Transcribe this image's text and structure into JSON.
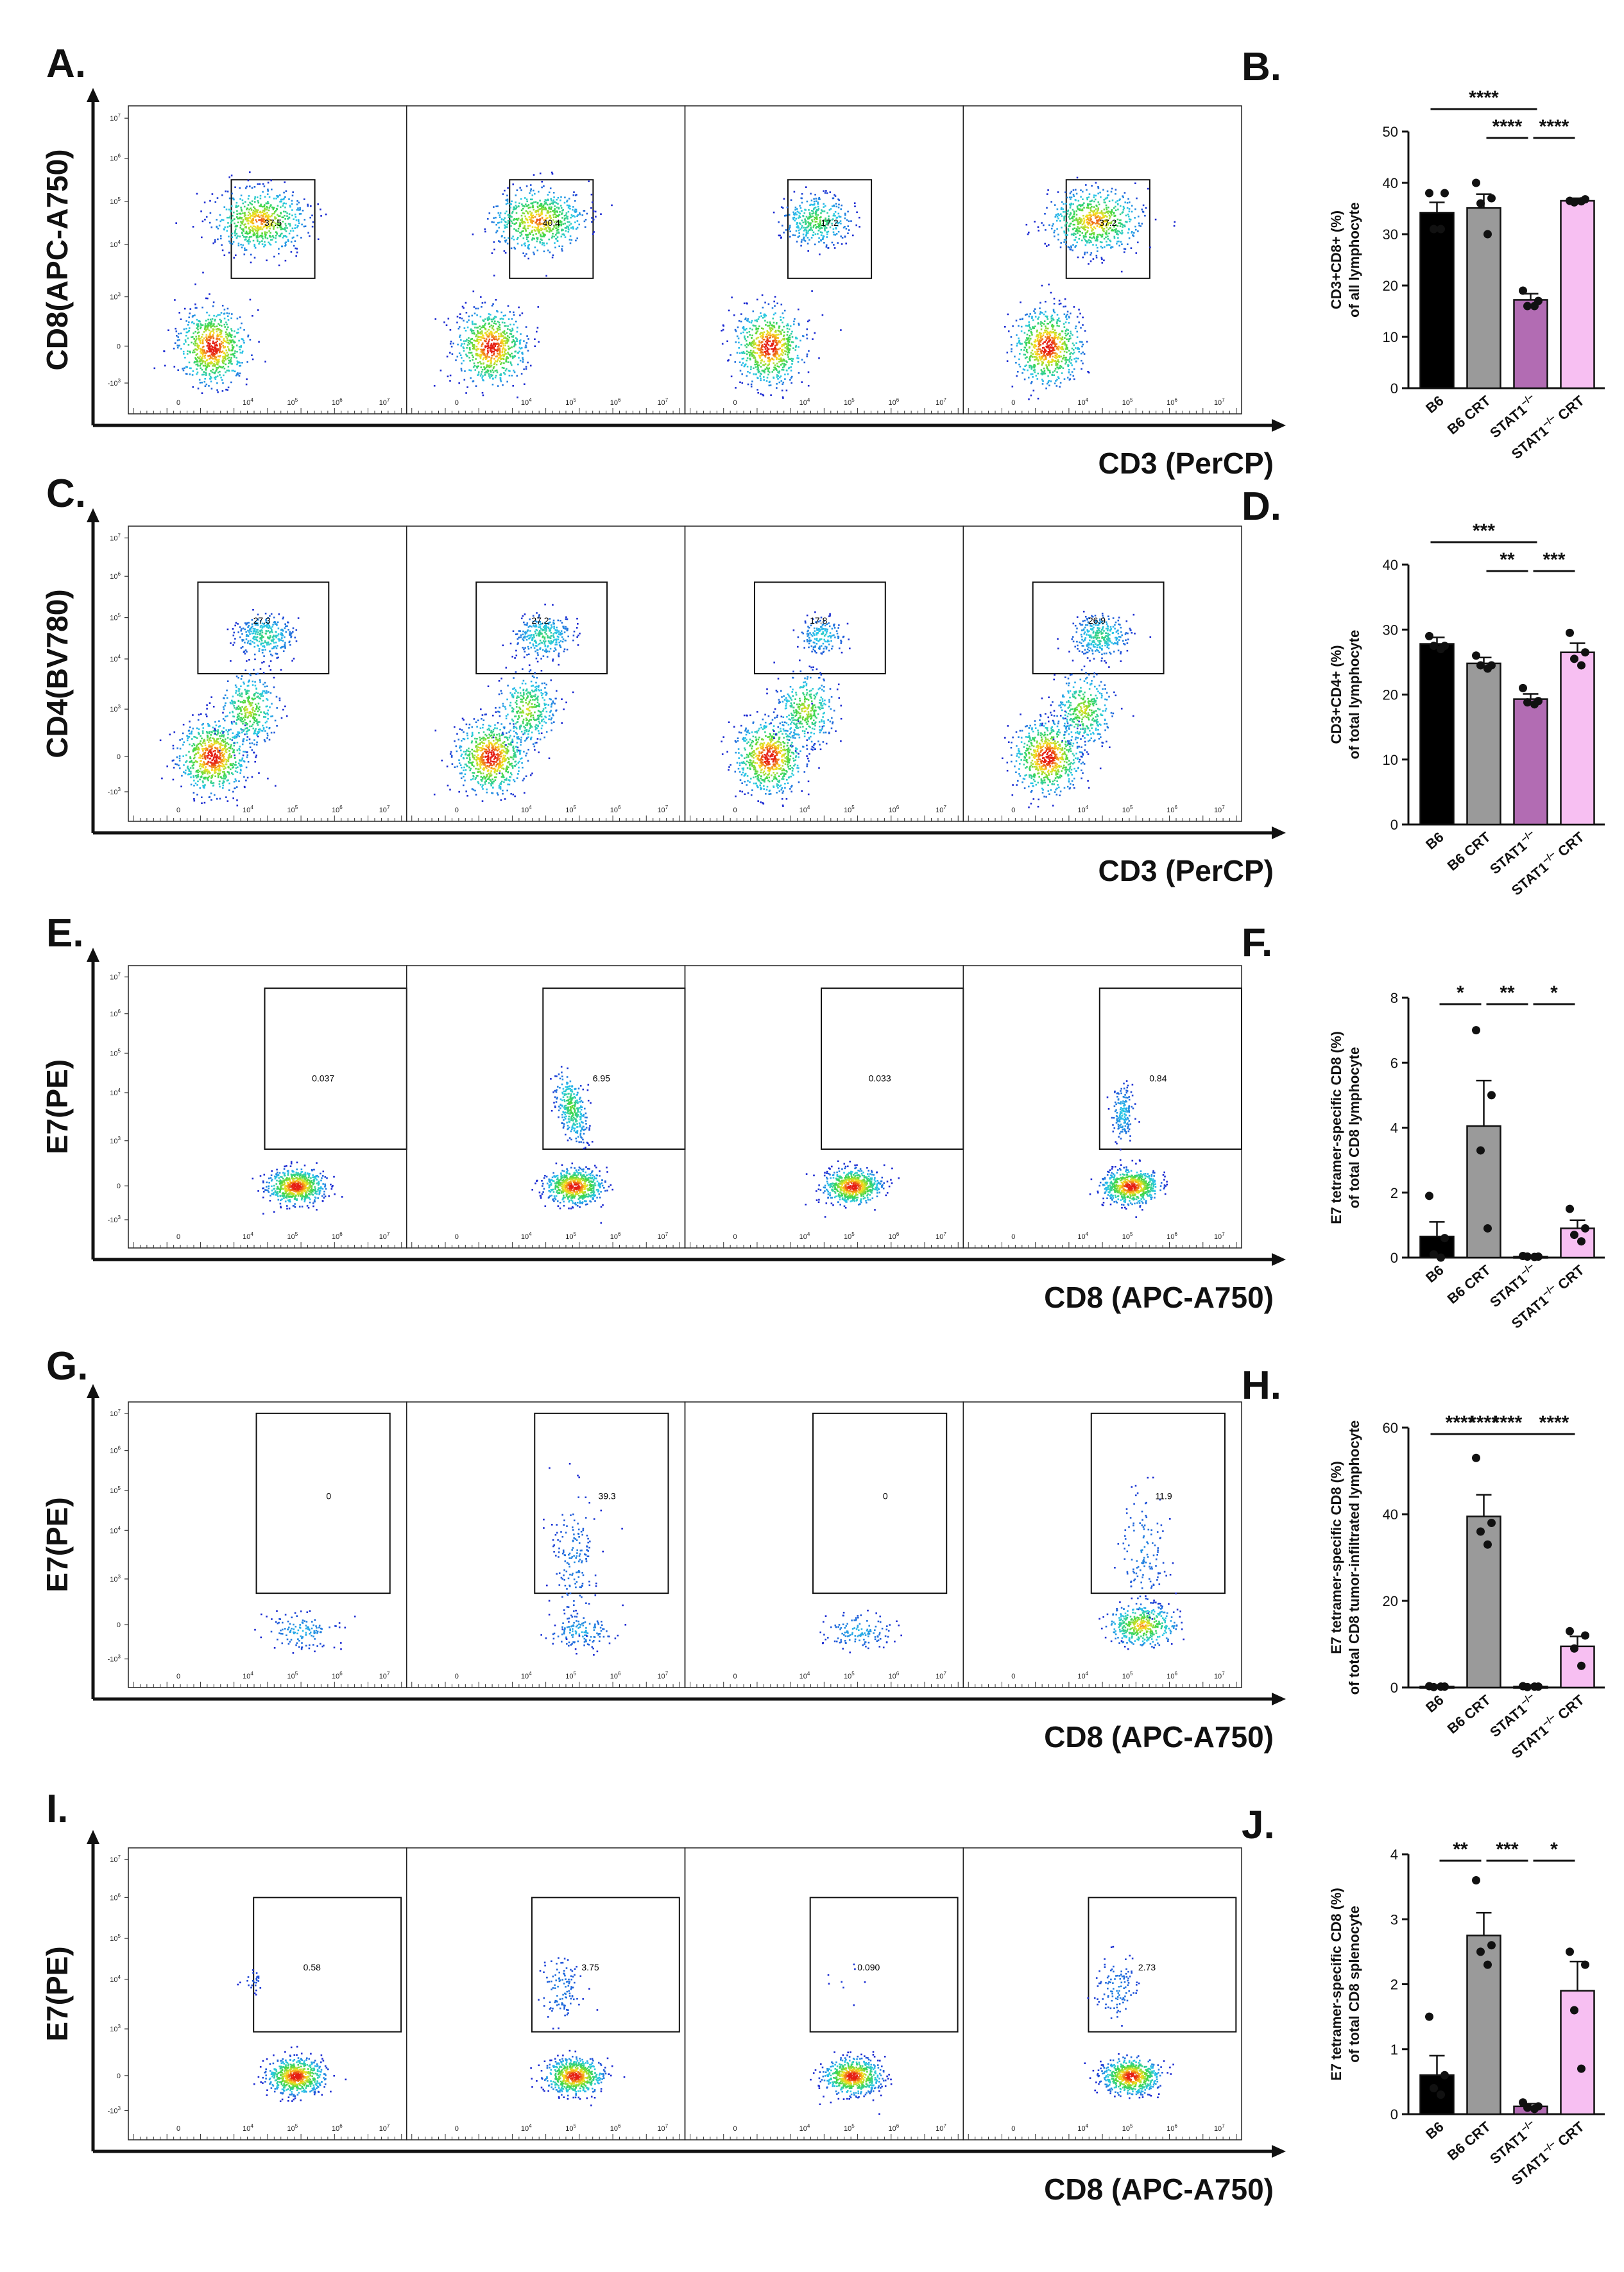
{
  "figure": {
    "flow_groups": [
      "B6",
      "B6 CRT",
      "STAT1−/−",
      "STAT1−/− CRT"
    ],
    "flow_tick_labels": {
      "y": [
        "10^7",
        "10^6",
        "10^5",
        "10^4",
        "10^3",
        "0",
        "-10^3"
      ],
      "x": [
        "0",
        "10^4",
        "10^5",
        "10^6",
        "10^7"
      ]
    }
  },
  "chart_data": [
    {
      "panel": "A.",
      "type": "scatter",
      "ylabel": "CD8(APC-A750)",
      "xlabel": "CD3 (PerCP)",
      "gate_values": [
        "37.5",
        "40.4",
        "17.2",
        "37.2"
      ],
      "populations": [
        [
          "dn",
          "cd8"
        ],
        [
          "dn",
          "cd8"
        ],
        [
          "dn",
          "cd8s"
        ],
        [
          "dn",
          "cd8"
        ]
      ]
    },
    {
      "panel": "B.",
      "type": "bar",
      "ylabel_lines": [
        "CD3+CD8+ (%)",
        "of all lymphocyte"
      ],
      "ylim": [
        0,
        50
      ],
      "yticks": [
        0,
        10,
        20,
        30,
        40,
        50
      ],
      "categories": [
        "B6",
        "B6 CRT",
        "STAT1",
        "STAT1"
      ],
      "category_sup": [
        "",
        "",
        "−/−",
        "−/−"
      ],
      "category_suffix": [
        "",
        "",
        "",
        " CRT"
      ],
      "colors": [
        "#000000",
        "#9a9a9a",
        "#b26cb3",
        "#f7bff2"
      ],
      "values": [
        34.2,
        35.1,
        17.2,
        36.5
      ],
      "sem": [
        2.0,
        2.7,
        1.2,
        0.5
      ],
      "points": [
        [
          38,
          38,
          31,
          31
        ],
        [
          40,
          37,
          36,
          30
        ],
        [
          19,
          17,
          16,
          16
        ],
        [
          36.5,
          36.8,
          36.2,
          36.4
        ]
      ],
      "significance": [
        {
          "from": 0,
          "to": 2,
          "label": "****"
        },
        {
          "from": 1,
          "to": 2,
          "label": "****"
        },
        {
          "from": 2,
          "to": 3,
          "label": "****"
        }
      ]
    },
    {
      "panel": "C.",
      "type": "scatter",
      "ylabel": "CD4(BV780)",
      "xlabel": "CD3 (PerCP)",
      "gate_values": [
        "27.3",
        "27.2",
        "17.8",
        "26.9"
      ],
      "populations": [
        [
          "dn",
          "mid",
          "cd4"
        ],
        [
          "dn",
          "mid",
          "cd4"
        ],
        [
          "dn",
          "mid",
          "cd4s"
        ],
        [
          "dn",
          "mid",
          "cd4"
        ]
      ]
    },
    {
      "panel": "D.",
      "type": "bar",
      "ylabel_lines": [
        "CD3+CD4+ (%)",
        "of total lymphocyte"
      ],
      "ylim": [
        0,
        40
      ],
      "yticks": [
        0,
        10,
        20,
        30,
        40
      ],
      "categories": [
        "B6",
        "B6 CRT",
        "STAT1",
        "STAT1"
      ],
      "category_sup": [
        "",
        "",
        "−/−",
        "−/−"
      ],
      "category_suffix": [
        "",
        "",
        "",
        " CRT"
      ],
      "colors": [
        "#000000",
        "#9a9a9a",
        "#b26cb3",
        "#f7bff2"
      ],
      "values": [
        27.8,
        24.8,
        19.3,
        26.5
      ],
      "sem": [
        1.0,
        0.9,
        0.8,
        1.4
      ],
      "points": [
        [
          29,
          27.5,
          27.5,
          27
        ],
        [
          26,
          24.5,
          24.5,
          24
        ],
        [
          21,
          19,
          18.8,
          18.5
        ],
        [
          29.5,
          26.5,
          25.5,
          24.5
        ]
      ],
      "significance": [
        {
          "from": 0,
          "to": 2,
          "label": "***"
        },
        {
          "from": 1,
          "to": 2,
          "label": "**"
        },
        {
          "from": 2,
          "to": 3,
          "label": "***"
        }
      ]
    },
    {
      "panel": "E.",
      "type": "scatter",
      "ylabel": "E7(PE)",
      "xlabel": "CD8 (APC-A750)",
      "gate_values": [
        "0.037",
        "6.95",
        "0.033",
        "0.84"
      ],
      "populations": [
        [
          "low"
        ],
        [
          "low",
          "tet_big"
        ],
        [
          "low"
        ],
        [
          "low",
          "tet_med"
        ]
      ]
    },
    {
      "panel": "F.",
      "type": "bar",
      "ylabel_lines": [
        "E7 tetramer-specific CD8 (%)",
        "of total CD8 lymphocyte"
      ],
      "ylim": [
        0,
        8
      ],
      "yticks": [
        0,
        2,
        4,
        6,
        8
      ],
      "categories": [
        "B6",
        "B6 CRT",
        "STAT1",
        "STAT1"
      ],
      "category_sup": [
        "",
        "",
        "−/−",
        "−/−"
      ],
      "category_suffix": [
        "",
        "",
        "",
        " CRT"
      ],
      "colors": [
        "#000000",
        "#9a9a9a",
        "#b26cb3",
        "#f7bff2"
      ],
      "values": [
        0.65,
        4.05,
        0.03,
        0.9
      ],
      "sem": [
        0.45,
        1.4,
        0.02,
        0.25
      ],
      "points": [
        [
          1.9,
          0.6,
          0.1,
          0.0
        ],
        [
          7.0,
          5.0,
          3.3,
          0.9
        ],
        [
          0.05,
          0.03,
          0.03,
          0.02
        ],
        [
          1.5,
          0.9,
          0.7,
          0.5
        ]
      ],
      "significance": [
        {
          "from": 0,
          "to": 1,
          "label": "*"
        },
        {
          "from": 1,
          "to": 2,
          "label": "**"
        },
        {
          "from": 2,
          "to": 3,
          "label": "*"
        }
      ]
    },
    {
      "panel": "G.",
      "type": "scatter",
      "ylabel": "E7(PE)",
      "xlabel": "CD8 (APC-A750)",
      "gate_values": [
        "0",
        "39.3",
        "0",
        "11.9"
      ],
      "populations": [
        [
          "sparse_low"
        ],
        [
          "sparse_low",
          "sparse_tet_big"
        ],
        [
          "sparse_low"
        ],
        [
          "dense_low",
          "sparse_tet_med"
        ]
      ]
    },
    {
      "panel": "H.",
      "type": "bar",
      "ylabel_lines": [
        "E7 tetramer-specific CD8 (%)",
        "of total CD8 tumor-infiltrated lymphocyte"
      ],
      "ylim": [
        0,
        60
      ],
      "yticks": [
        0,
        20,
        40,
        60
      ],
      "categories": [
        "B6",
        "B6 CRT",
        "STAT1",
        "STAT1"
      ],
      "category_sup": [
        "",
        "",
        "−/−",
        "−/−"
      ],
      "category_suffix": [
        "",
        "",
        "",
        " CRT"
      ],
      "colors": [
        "#000000",
        "#9a9a9a",
        "#b26cb3",
        "#f7bff2"
      ],
      "values": [
        0.2,
        39.5,
        0.2,
        9.5
      ],
      "sem": [
        0.1,
        5.0,
        0.1,
        2.3
      ],
      "points": [
        [
          0.3,
          0.2,
          0.1,
          0.2
        ],
        [
          53,
          38,
          36,
          33
        ],
        [
          0.3,
          0.2,
          0.1,
          0.2
        ],
        [
          13,
          12,
          9,
          5
        ]
      ],
      "significance": [
        {
          "from": 0,
          "to": 1,
          "label": "****"
        },
        {
          "from": 1,
          "to": 2,
          "label": "****"
        },
        {
          "from": 0,
          "to": 2,
          "label": "****"
        },
        {
          "from": 2,
          "to": 3,
          "label": "****"
        }
      ]
    },
    {
      "panel": "I.",
      "type": "scatter",
      "ylabel": "E7(PE)",
      "xlabel": "CD8 (APC-A750)",
      "gate_values": [
        "0.58",
        "3.75",
        "0.090",
        "2.73"
      ],
      "populations": [
        [
          "low",
          "tet_few"
        ],
        [
          "low",
          "tet_sparse"
        ],
        [
          "low",
          "tet_none"
        ],
        [
          "low",
          "tet_sparse"
        ]
      ]
    },
    {
      "panel": "J.",
      "type": "bar",
      "ylabel_lines": [
        "E7 tetramer-specific CD8 (%)",
        "of total CD8 splenocyte"
      ],
      "ylim": [
        0,
        4
      ],
      "yticks": [
        0,
        1,
        2,
        3,
        4
      ],
      "categories": [
        "B6",
        "B6 CRT",
        "STAT1",
        "STAT1"
      ],
      "category_sup": [
        "",
        "",
        "−/−",
        "−/−"
      ],
      "category_suffix": [
        "",
        "",
        "",
        " CRT"
      ],
      "colors": [
        "#000000",
        "#9a9a9a",
        "#b26cb3",
        "#f7bff2"
      ],
      "values": [
        0.6,
        2.75,
        0.12,
        1.9
      ],
      "sem": [
        0.3,
        0.35,
        0.04,
        0.45
      ],
      "points": [
        [
          1.5,
          0.6,
          0.4,
          0.3
        ],
        [
          3.6,
          2.6,
          2.5,
          2.3
        ],
        [
          0.18,
          0.12,
          0.1,
          0.08
        ],
        [
          2.5,
          2.3,
          1.6,
          0.7
        ]
      ],
      "significance": [
        {
          "from": 0,
          "to": 1,
          "label": "**"
        },
        {
          "from": 1,
          "to": 2,
          "label": "***"
        },
        {
          "from": 2,
          "to": 3,
          "label": "*"
        }
      ]
    }
  ]
}
